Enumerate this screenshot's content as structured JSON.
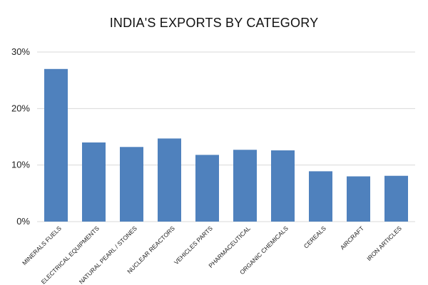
{
  "chart_data": {
    "type": "bar",
    "title": "INDIA'S EXPORTS BY CATEGORY",
    "xlabel": "",
    "ylabel": "",
    "categories": [
      "MINERALS FUELS",
      "ELECTRICAL EQUIPMENTS",
      "NATURAL PEARL / STONES",
      "NUCLEAR REACTORS",
      "VEHICLES PARTS",
      "PHARMACEUTICAL",
      "ORGANIC CHEMICALS",
      "CEREALS",
      "AIRCRAFT",
      "IRON ARTICLES"
    ],
    "values": [
      27,
      14,
      13.2,
      14.7,
      11.8,
      12.7,
      12.6,
      8.9,
      8,
      8.1
    ],
    "ylim": [
      0,
      30
    ],
    "yticks": [
      0,
      10,
      20,
      30
    ],
    "ytick_labels": [
      "0%",
      "10%",
      "20%",
      "30%"
    ],
    "grid": true,
    "bar_color": "#4f81bd",
    "gridline_color": "#d9d9d9"
  }
}
